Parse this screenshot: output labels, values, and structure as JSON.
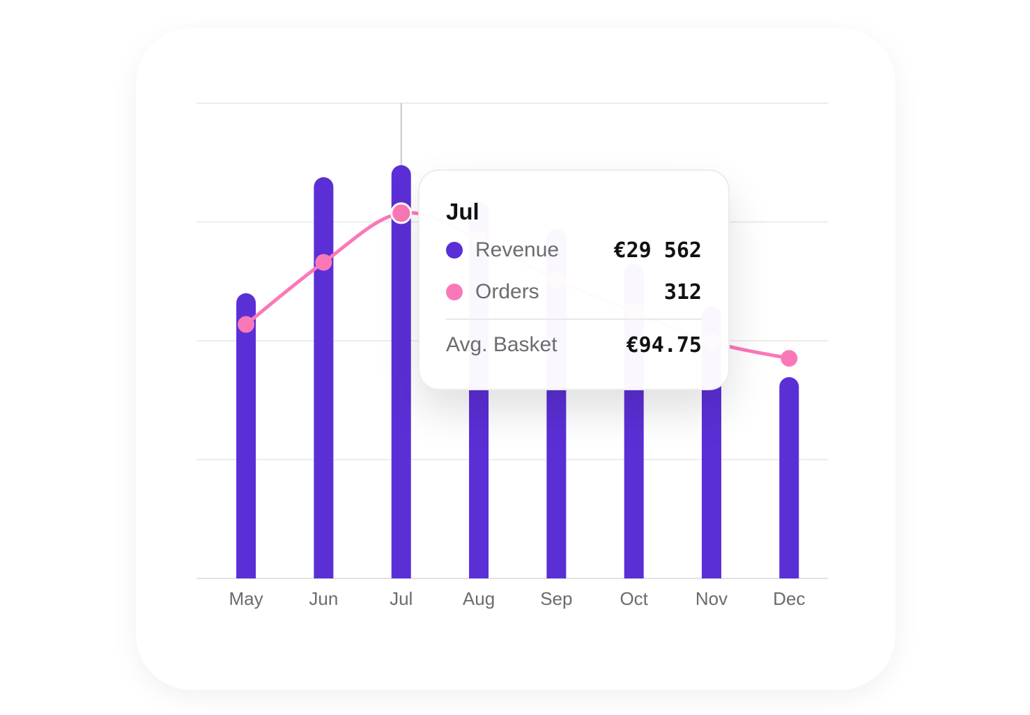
{
  "chart_data": {
    "type": "bar-line",
    "categories": [
      "May",
      "Jun",
      "Jul",
      "Aug",
      "Sep",
      "Oct",
      "Nov",
      "Dec"
    ],
    "series": [
      {
        "name": "Revenue",
        "type": "bar",
        "color": "#5b2fd6",
        "values": [
          20400,
          28700,
          29562,
          27000,
          25000,
          22500,
          19500,
          14400
        ]
      },
      {
        "name": "Orders",
        "type": "line",
        "axis": "y2",
        "color": "#fb78b8",
        "values": [
          217,
          270,
          312,
          290,
          255,
          228,
          202,
          188
        ]
      }
    ],
    "ylim": [
      0,
      34000
    ],
    "yticks": [
      0,
      8500,
      17000,
      25500,
      34000
    ],
    "y2lim": [
      0,
      406
    ],
    "grid": true,
    "tooltip": {
      "title": "Jul",
      "values": [
        "€29 562",
        "312"
      ],
      "footer_label": "Avg. Basket",
      "footer_value": "€94.75"
    }
  }
}
